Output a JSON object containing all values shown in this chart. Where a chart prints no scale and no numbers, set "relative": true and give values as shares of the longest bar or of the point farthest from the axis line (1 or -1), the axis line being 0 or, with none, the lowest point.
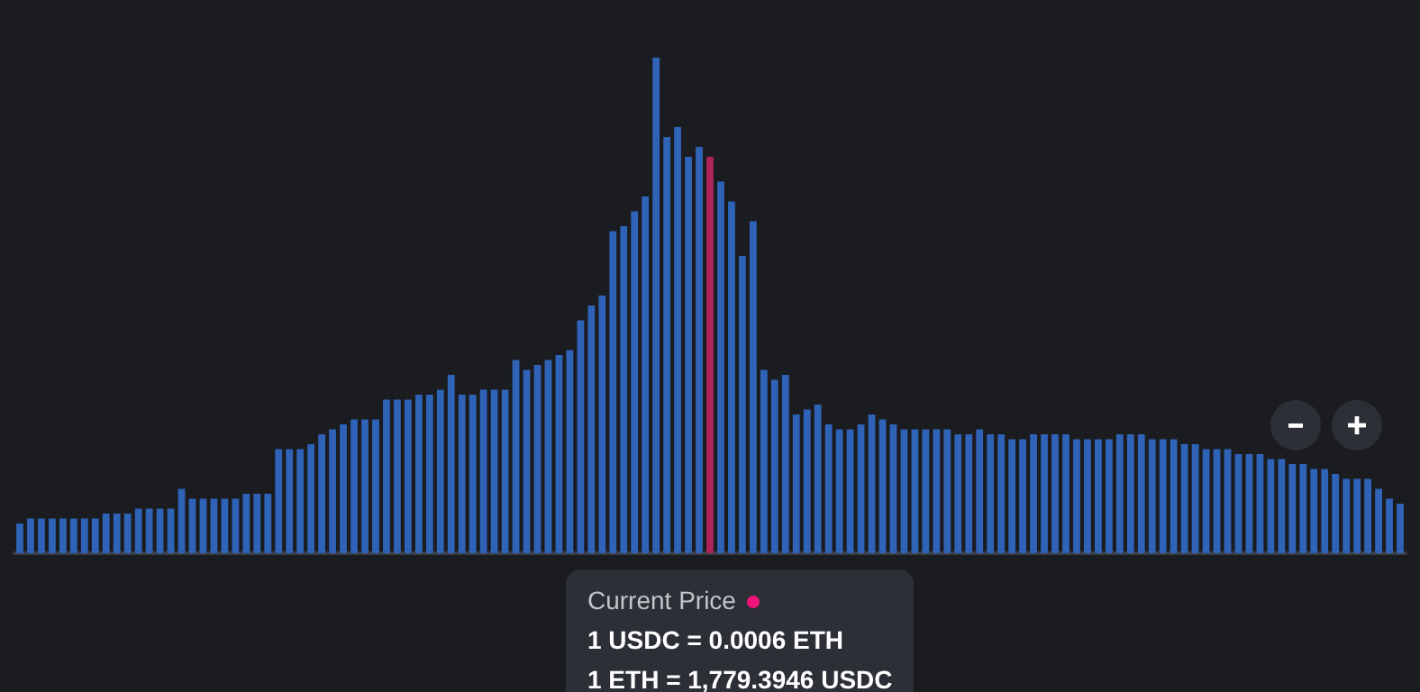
{
  "chart_data": {
    "type": "bar",
    "relative": true,
    "categories": [
      null,
      null,
      null,
      null,
      null,
      null,
      null,
      null,
      null,
      null,
      null,
      null,
      null,
      null,
      null,
      null,
      null,
      null,
      null,
      null,
      null,
      null,
      null,
      null,
      null,
      null,
      null,
      null,
      null,
      null,
      null,
      null,
      null,
      null,
      null,
      null,
      null,
      null,
      null,
      null,
      null,
      null,
      null,
      null,
      null,
      null,
      null,
      null,
      null,
      null,
      null,
      null,
      null,
      null,
      null,
      null,
      null,
      null,
      null,
      null,
      null,
      null,
      null,
      null,
      null,
      null,
      null,
      null,
      null,
      null,
      null,
      null,
      null,
      null,
      null,
      null,
      null,
      null,
      null,
      null,
      null,
      null,
      null,
      null,
      null,
      null,
      null,
      null,
      null,
      null,
      null,
      null,
      null,
      null,
      null,
      null,
      null,
      null,
      null,
      null,
      null,
      null,
      null,
      null,
      null,
      null,
      null,
      null,
      null,
      null,
      null,
      null,
      null,
      null,
      null,
      null,
      null,
      null,
      null,
      null,
      null,
      null,
      null,
      null,
      null,
      null,
      null,
      null,
      null
    ],
    "values": [
      0.06,
      0.07,
      0.07,
      0.07,
      0.07,
      0.07,
      0.07,
      0.07,
      0.08,
      0.08,
      0.08,
      0.09,
      0.09,
      0.09,
      0.09,
      0.13,
      0.11,
      0.11,
      0.11,
      0.11,
      0.11,
      0.12,
      0.12,
      0.12,
      0.21,
      0.21,
      0.21,
      0.22,
      0.24,
      0.25,
      0.26,
      0.27,
      0.27,
      0.27,
      0.31,
      0.31,
      0.31,
      0.32,
      0.32,
      0.33,
      0.36,
      0.32,
      0.32,
      0.33,
      0.33,
      0.33,
      0.39,
      0.37,
      0.38,
      0.39,
      0.4,
      0.41,
      0.47,
      0.5,
      0.52,
      0.65,
      0.66,
      0.69,
      0.72,
      1,
      0.84,
      0.86,
      0.8,
      0.82,
      0.8,
      0.75,
      0.71,
      0.6,
      0.67,
      0.37,
      0.35,
      0.36,
      0.28,
      0.29,
      0.3,
      0.26,
      0.25,
      0.25,
      0.26,
      0.28,
      0.27,
      0.26,
      0.25,
      0.25,
      0.25,
      0.25,
      0.25,
      0.24,
      0.24,
      0.25,
      0.24,
      0.24,
      0.23,
      0.23,
      0.24,
      0.24,
      0.24,
      0.24,
      0.23,
      0.23,
      0.23,
      0.23,
      0.24,
      0.24,
      0.24,
      0.23,
      0.23,
      0.23,
      0.22,
      0.22,
      0.21,
      0.21,
      0.21,
      0.2,
      0.2,
      0.2,
      0.19,
      0.19,
      0.18,
      0.18,
      0.17,
      0.17,
      0.16,
      0.15,
      0.15,
      0.15,
      0.13,
      0.11,
      0.1
    ],
    "colors": [
      "#2f63b8",
      "#2f63b8",
      "#2f63b8",
      "#2f63b8",
      "#2f63b8",
      "#2f63b8",
      "#2f63b8",
      "#2f63b8",
      "#2f63b8",
      "#2f63b8",
      "#2f63b8",
      "#2f63b8",
      "#2f63b8",
      "#2f63b8",
      "#2f63b8",
      "#2f63b8",
      "#2f63b8",
      "#2f63b8",
      "#2f63b8",
      "#2f63b8",
      "#2f63b8",
      "#2f63b8",
      "#2f63b8",
      "#2f63b8",
      "#2f63b8",
      "#2f63b8",
      "#2f63b8",
      "#2f63b8",
      "#2f63b8",
      "#2f63b8",
      "#2f63b8",
      "#2f63b8",
      "#2f63b8",
      "#2f63b8",
      "#2f63b8",
      "#2f63b8",
      "#2f63b8",
      "#2f63b8",
      "#2f63b8",
      "#2f63b8",
      "#2f63b8",
      "#2f63b8",
      "#2f63b8",
      "#2f63b8",
      "#2f63b8",
      "#2f63b8",
      "#2f63b8",
      "#2f63b8",
      "#2f63b8",
      "#2f63b8",
      "#2f63b8",
      "#2f63b8",
      "#2f63b8",
      "#2f63b8",
      "#2f63b8",
      "#2f63b8",
      "#2f63b8",
      "#2f63b8",
      "#2f63b8",
      "#2f63b8",
      "#2f63b8",
      "#2f63b8",
      "#2f63b8",
      "#2f63b8",
      "#b0245c",
      "#2f63b8",
      "#2f63b8",
      "#2f63b8",
      "#2f63b8",
      "#2f63b8",
      "#2f63b8",
      "#2f63b8",
      "#2f63b8",
      "#2f63b8",
      "#2f63b8",
      "#2f63b8",
      "#2f63b8",
      "#2f63b8",
      "#2f63b8",
      "#2f63b8",
      "#2f63b8",
      "#2f63b8",
      "#2f63b8",
      "#2f63b8",
      "#2f63b8",
      "#2f63b8",
      "#2f63b8",
      "#2f63b8",
      "#2f63b8",
      "#2f63b8",
      "#2f63b8",
      "#2f63b8",
      "#2f63b8",
      "#2f63b8",
      "#2f63b8",
      "#2f63b8",
      "#2f63b8",
      "#2f63b8",
      "#2f63b8",
      "#2f63b8",
      "#2f63b8",
      "#2f63b8",
      "#2f63b8",
      "#2f63b8",
      "#2f63b8",
      "#2f63b8",
      "#2f63b8",
      "#2f63b8",
      "#2f63b8",
      "#2f63b8",
      "#2f63b8",
      "#2f63b8",
      "#2f63b8",
      "#2f63b8",
      "#2f63b8",
      "#2f63b8",
      "#2f63b8",
      "#2f63b8",
      "#2f63b8",
      "#2f63b8",
      "#2f63b8",
      "#2f63b8",
      "#2f63b8",
      "#2f63b8",
      "#2f63b8",
      "#2f63b8",
      "#2f63b8",
      "#2f63b8",
      "#2f63b8"
    ],
    "annotations": [
      "Current Price",
      "1 USDC = 0.0006 ETH",
      "1 ETH = 1,779.3946 USDC"
    ]
  }
}
